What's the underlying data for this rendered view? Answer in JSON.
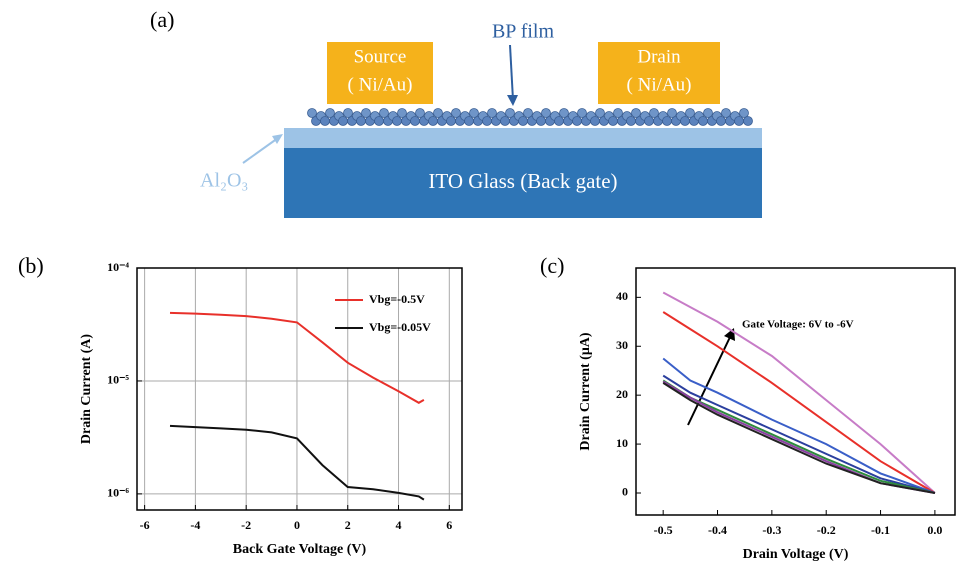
{
  "diagram": {
    "panel_label": "(a)",
    "source": "Source",
    "source_metal": "( Ni/Au)",
    "drain": "Drain",
    "drain_metal": "( Ni/Au)",
    "film": "BP film",
    "dielectric": "Al₂O₃",
    "substrate": "ITO Glass (Back gate)"
  },
  "chart_data": [
    {
      "type": "line",
      "panel_label": "(b)",
      "x_label": "Back Gate Voltage (V)",
      "y_label": "Drain Current (A)",
      "log_y": true,
      "grid": true,
      "legend": "upper right",
      "xlim": [
        -6.3,
        6.5
      ],
      "xticks": [
        -6,
        -4,
        -2,
        0,
        2,
        4,
        6
      ],
      "ylim": [
        7.2e-07,
        0.0001
      ],
      "yticks": [
        {
          "value": 1e-06,
          "label": "10⁻⁶"
        },
        {
          "value": 1e-05,
          "label": "10⁻⁵"
        },
        {
          "value": 0.0001,
          "label": "10⁻⁴"
        }
      ],
      "x": [
        -5,
        -4,
        -3,
        -2,
        -1,
        0,
        1,
        2,
        3,
        4,
        4.8,
        5
      ],
      "series": [
        {
          "name": "Vbg=-0.5V",
          "color": "#e8302a",
          "values": [
            4e-05,
            3.95e-05,
            3.85e-05,
            3.75e-05,
            3.55e-05,
            3.3e-05,
            2.2e-05,
            1.45e-05,
            1.07e-05,
            8.1e-06,
            6.4e-06,
            6.8e-06
          ]
        },
        {
          "name": "Vbg=-0.05V",
          "color": "#111111",
          "values": [
            4e-06,
            3.9e-06,
            3.8e-06,
            3.7e-06,
            3.5e-06,
            3.1e-06,
            1.8e-06,
            1.15e-06,
            1.1e-06,
            1.02e-06,
            9.5e-07,
            8.9e-07
          ]
        }
      ]
    },
    {
      "type": "line",
      "panel_label": "(c)",
      "x_label": "Drain Voltage (V)",
      "y_label": "Drain Current (μA)",
      "annotation": "Gate Voltage: 6V to -6V",
      "grid": false,
      "xlim": [
        -0.55,
        0.037
      ],
      "xticks": [
        -0.5,
        -0.4,
        -0.3,
        -0.2,
        -0.1,
        {
          "value": 0,
          "label": "0.0"
        }
      ],
      "ylim": [
        -4.5,
        46
      ],
      "yticks": [
        0,
        10,
        20,
        30,
        40
      ],
      "x": [
        -0.5,
        -0.45,
        -0.4,
        -0.3,
        -0.2,
        -0.1,
        0
      ],
      "series": [
        {
          "color": "#c77cc7",
          "values": [
            41,
            38,
            35,
            28,
            19,
            10,
            0
          ]
        },
        {
          "color": "#e8302a",
          "values": [
            37,
            33.5,
            30,
            22.5,
            14.5,
            6.5,
            0
          ]
        },
        {
          "color": "#3a5fc8",
          "values": [
            27.5,
            23,
            20.5,
            15,
            10,
            4,
            0
          ]
        },
        {
          "color": "#2b3f9e",
          "values": [
            24,
            20.5,
            18,
            13,
            8,
            3,
            0
          ]
        },
        {
          "color": "#2e8b3e",
          "values": [
            23,
            19.5,
            17,
            12,
            7,
            2.5,
            0
          ]
        },
        {
          "color": "#8a3fa0",
          "values": [
            22.8,
            19.5,
            16.5,
            11.5,
            6.5,
            2,
            0
          ]
        },
        {
          "color": "#222222",
          "values": [
            22.5,
            19,
            16,
            11,
            6,
            2,
            0
          ]
        }
      ]
    }
  ]
}
